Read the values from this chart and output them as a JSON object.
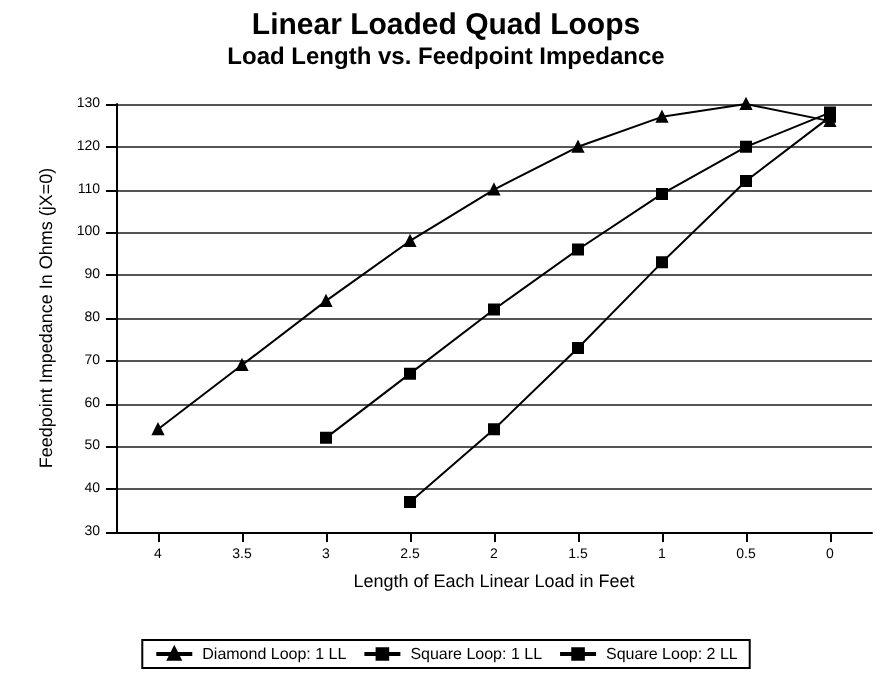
{
  "chart_data": {
    "type": "line",
    "title": "Linear Loaded Quad Loops",
    "subtitle": "Load Length vs. Feedpoint Impedance",
    "xlabel": "Length of Each Linear Load in Feet",
    "ylabel": "Feedpoint Impedance In Ohms (jX=0)",
    "categories": [
      "4",
      "3.5",
      "3",
      "2.5",
      "2",
      "1.5",
      "1",
      "0.5",
      "0"
    ],
    "series": [
      {
        "name": "Diamond Loop: 1 LL",
        "color": "#000000",
        "marker": "triangle",
        "values": [
          54,
          69,
          84,
          98,
          110,
          120,
          127,
          130,
          126
        ]
      },
      {
        "name": "Square Loop: 1 LL",
        "color": "#000000",
        "marker": "square",
        "values": [
          null,
          null,
          52,
          67,
          82,
          96,
          109,
          120,
          128
        ]
      },
      {
        "name": "Square Loop: 2 LL",
        "color": "#000000",
        "marker": "square",
        "values": [
          null,
          null,
          null,
          37,
          54,
          73,
          93,
          112,
          127
        ]
      }
    ],
    "ylim": [
      30,
      130
    ],
    "yticks": [
      30,
      40,
      50,
      60,
      70,
      80,
      90,
      100,
      110,
      120,
      130
    ],
    "grid": "y",
    "legend": "bottom"
  }
}
